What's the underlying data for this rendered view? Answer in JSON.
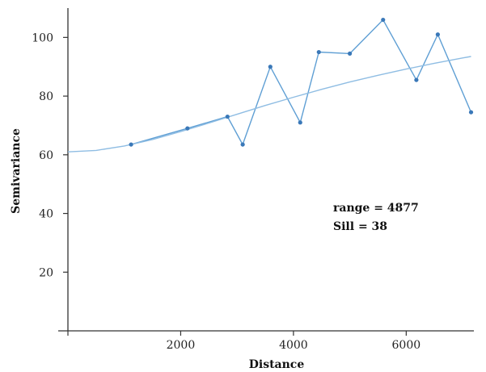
{
  "chart_data": {
    "type": "line",
    "xlabel": "Distance",
    "ylabel": "Semivariance",
    "xlim": [
      0,
      7200
    ],
    "ylim": [
      0,
      110
    ],
    "xticks": [
      2000,
      4000,
      6000
    ],
    "yticks": [
      20,
      40,
      60,
      80,
      100
    ],
    "xtick_labels": [
      "2000",
      "4000",
      "6000"
    ],
    "ytick_labels": [
      "20",
      "40",
      "60",
      "80",
      "100"
    ],
    "grid": false,
    "series": [
      {
        "name": "",
        "kind": "empirical",
        "color": "#5f9fd4",
        "marker_color": "#3a78b8",
        "x": [
          1120,
          2120,
          2830,
          3100,
          3590,
          4120,
          4450,
          5000,
          5590,
          6180,
          6560,
          7150
        ],
        "y": [
          63.5,
          69,
          73,
          63.5,
          90,
          71,
          95,
          94.5,
          106,
          85.5,
          101,
          74.5
        ]
      },
      {
        "name": "",
        "kind": "model",
        "color": "#8fbde3",
        "x": [
          0,
          500,
          1000,
          1500,
          2000,
          2500,
          3000,
          3500,
          4000,
          4500,
          5000,
          5500,
          6000,
          6500,
          7000,
          7150
        ],
        "y": [
          61,
          61.5,
          63,
          65.2,
          67.9,
          70.8,
          73.8,
          76.8,
          79.6,
          82.3,
          84.8,
          87.1,
          89.2,
          91.2,
          93,
          93.5
        ]
      }
    ],
    "annotations": [
      "range = 4877",
      "Sill = 38"
    ]
  }
}
